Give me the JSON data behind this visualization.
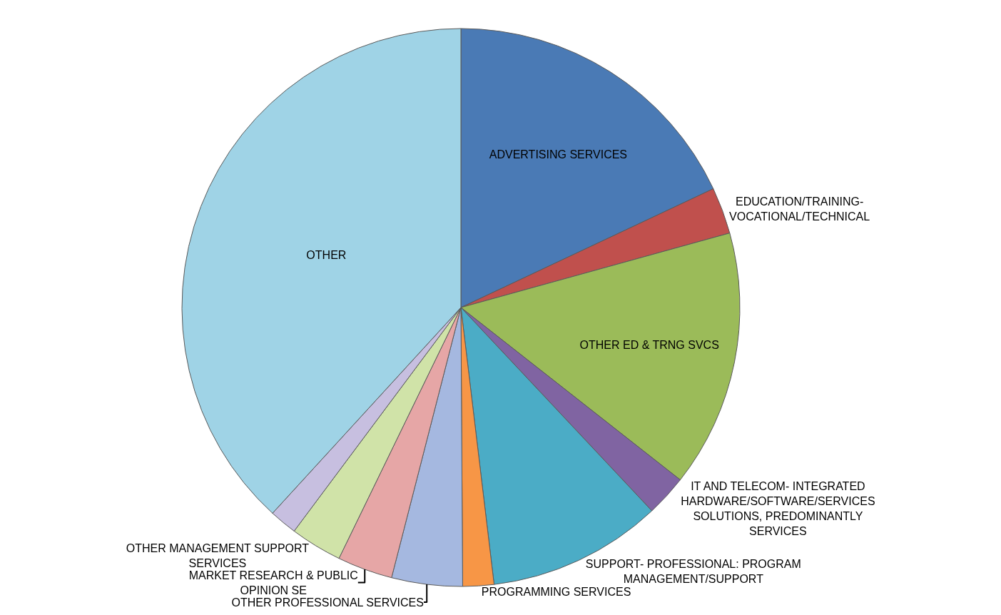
{
  "chart_data": {
    "type": "pie",
    "categories": [
      "ADVERTISING SERVICES",
      "EDUCATION/TRAINING- VOCATIONAL/TECHNICAL",
      "OTHER ED & TRNG SVCS",
      "IT AND TELECOM- INTEGRATED HARDWARE/SOFTWARE/SERVICES SOLUTIONS, PREDOMINANTLY SERVICES",
      "SUPPORT- PROFESSIONAL: PROGRAM MANAGEMENT/SUPPORT",
      "PROGRAMMING SERVICES",
      "OTHER PROFESSIONAL SERVICES",
      "MARKET RESEARCH & PUBLIC OPINION SE",
      "OTHER MANAGEMENT SUPPORT SERVICES",
      null,
      "OTHER"
    ],
    "values": [
      18.0,
      2.7,
      14.9,
      2.4,
      10.1,
      1.8,
      4.1,
      3.2,
      3.0,
      1.6,
      38.2
    ],
    "colors": [
      "#4a7ab5",
      "#c0504d",
      "#9bbb59",
      "#8064a2",
      "#4bacc6",
      "#f79646",
      "#a5b8e0",
      "#e6a6a6",
      "#d0e3a8",
      "#c7bfe0",
      "#9fd3e6"
    ],
    "legend": false
  }
}
